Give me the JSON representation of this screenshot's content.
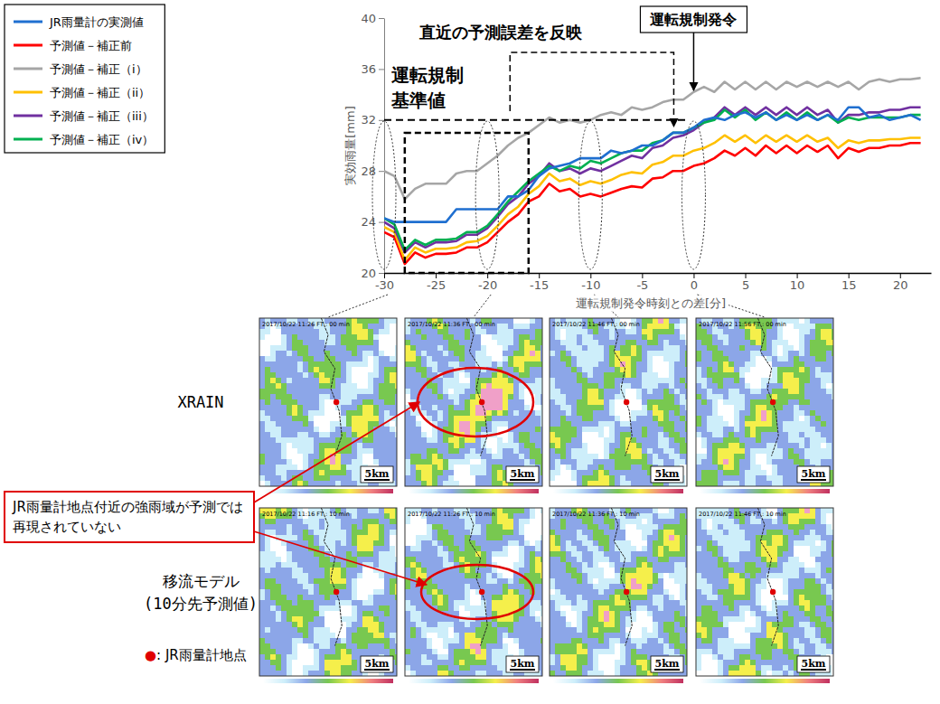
{
  "chart_data": {
    "type": "line",
    "xlabel": "運転規制発令時刻との差[分]",
    "ylabel": "実効雨量[mm]",
    "x": [
      -30,
      -29,
      -28,
      -27,
      -26,
      -25,
      -24,
      -23,
      -22,
      -21,
      -20,
      -19,
      -18,
      -17,
      -16,
      -15,
      -14,
      -13,
      -12,
      -11,
      -10,
      -9,
      -8,
      -7,
      -6,
      -5,
      -4,
      -3,
      -2,
      -1,
      0,
      1,
      2,
      3,
      4,
      5,
      6,
      7,
      8,
      9,
      10,
      11,
      12,
      13,
      14,
      15,
      16,
      17,
      18,
      19,
      20,
      21,
      22
    ],
    "series": [
      {
        "name": "JR雨量計の実測値",
        "color": "#1f6fd0",
        "values": [
          24.3,
          24.0,
          24.0,
          24.0,
          24.0,
          24.0,
          24.0,
          25.0,
          25.0,
          25.0,
          25.0,
          25.0,
          26.0,
          26.0,
          26.5,
          27.6,
          28.2,
          28.4,
          28.6,
          29.0,
          29.0,
          29.0,
          29.6,
          29.4,
          29.6,
          30.0,
          30.0,
          30.4,
          31.0,
          31.0,
          31.4,
          32.0,
          32.2,
          32.0,
          32.4,
          32.6,
          32.2,
          32.6,
          32.0,
          32.4,
          32.0,
          32.4,
          32.0,
          32.4,
          32.0,
          33.0,
          33.0,
          32.2,
          32.4,
          32.0,
          32.2,
          32.4,
          32.0
        ]
      },
      {
        "name": "予測値－補正前",
        "color": "#ff0000",
        "values": [
          23.2,
          22.8,
          20.7,
          21.6,
          21.2,
          21.5,
          21.5,
          21.6,
          22.0,
          22.0,
          22.4,
          23.2,
          24.0,
          24.6,
          25.6,
          26.0,
          27.0,
          26.4,
          26.6,
          26.0,
          26.2,
          26.0,
          26.3,
          26.6,
          26.8,
          26.7,
          27.4,
          27.5,
          28.0,
          28.0,
          28.4,
          28.6,
          29.0,
          29.6,
          29.2,
          29.8,
          29.2,
          30.0,
          29.4,
          30.0,
          29.4,
          30.0,
          29.5,
          30.0,
          29.0,
          29.8,
          29.5,
          29.8,
          29.8,
          30.0,
          30.0,
          30.2,
          30.2
        ]
      },
      {
        "name": "予測値－補正（i）",
        "color": "#a6a6a6",
        "values": [
          28.0,
          27.6,
          25.8,
          26.6,
          27.0,
          27.0,
          27.0,
          27.8,
          28.0,
          28.0,
          28.6,
          29.2,
          30.0,
          30.6,
          31.0,
          31.6,
          32.2,
          31.8,
          32.0,
          31.8,
          32.0,
          32.4,
          32.6,
          32.4,
          33.0,
          32.8,
          33.0,
          33.4,
          33.6,
          33.6,
          34.2,
          34.6,
          34.2,
          35.0,
          34.4,
          35.0,
          34.4,
          35.0,
          34.4,
          35.0,
          34.6,
          35.0,
          34.6,
          35.0,
          34.6,
          35.0,
          34.4,
          35.0,
          35.2,
          35.0,
          35.2,
          35.2,
          35.3
        ]
      },
      {
        "name": "予測値－補正（ii）",
        "color": "#ffc000",
        "values": [
          23.6,
          23.2,
          21.0,
          22.0,
          21.6,
          21.9,
          21.9,
          22.0,
          22.4,
          22.5,
          22.9,
          23.7,
          24.6,
          25.2,
          26.2,
          26.8,
          27.8,
          27.2,
          27.4,
          26.9,
          27.2,
          27.0,
          27.3,
          27.7,
          27.9,
          27.8,
          28.5,
          28.7,
          29.2,
          29.2,
          29.6,
          29.8,
          30.2,
          30.8,
          30.3,
          30.8,
          30.2,
          30.8,
          30.3,
          30.8,
          30.3,
          30.8,
          30.3,
          30.6,
          29.8,
          30.4,
          30.2,
          30.4,
          30.4,
          30.5,
          30.5,
          30.6,
          30.6
        ]
      },
      {
        "name": "予測値－補正（iii）",
        "color": "#7030a0",
        "values": [
          24.0,
          23.5,
          21.6,
          22.4,
          22.0,
          22.4,
          22.4,
          22.5,
          23.0,
          23.0,
          23.5,
          24.4,
          25.4,
          26.0,
          27.0,
          27.6,
          28.6,
          28.0,
          28.2,
          27.8,
          28.2,
          28.0,
          28.4,
          28.8,
          29.2,
          29.0,
          29.8,
          30.0,
          30.6,
          30.8,
          31.2,
          31.8,
          32.2,
          33.0,
          32.4,
          33.0,
          32.4,
          33.0,
          32.4,
          33.0,
          32.4,
          33.0,
          32.4,
          32.8,
          31.8,
          32.4,
          32.4,
          32.6,
          32.6,
          32.8,
          32.8,
          33.0,
          33.0
        ]
      },
      {
        "name": "予測値－補正（iv）",
        "color": "#00b050",
        "values": [
          24.3,
          23.8,
          21.8,
          22.6,
          22.2,
          22.6,
          22.6,
          22.7,
          23.2,
          23.2,
          23.7,
          24.6,
          25.6,
          26.4,
          27.2,
          27.8,
          28.4,
          28.0,
          28.4,
          28.2,
          28.8,
          28.6,
          29.0,
          29.4,
          29.6,
          29.6,
          30.2,
          30.4,
          31.0,
          31.0,
          31.4,
          31.8,
          32.0,
          32.8,
          32.2,
          32.8,
          32.0,
          32.6,
          32.0,
          32.6,
          32.0,
          32.6,
          32.0,
          32.4,
          31.8,
          32.2,
          32.0,
          32.2,
          32.2,
          32.2,
          32.2,
          32.4,
          32.4
        ]
      }
    ],
    "xlim": [
      -30,
      23
    ],
    "xticks": [
      -30,
      -25,
      -20,
      -15,
      -10,
      -5,
      0,
      5,
      10,
      15,
      20
    ],
    "ylim": [
      20,
      40
    ],
    "yticks": [
      20,
      24,
      28,
      32,
      36,
      40
    ],
    "grid": false,
    "legend": "upper left",
    "annotations": [
      {
        "text": "運転規制基準値",
        "y": 32
      },
      {
        "text": "直近の予測誤差を反映",
        "x": [
          -28,
          -16
        ],
        "y": [
          20,
          31
        ]
      },
      {
        "text": "運転規制発令",
        "x": 0
      }
    ]
  },
  "figure": {
    "columns_x": [
      -30,
      -20,
      -10,
      0
    ],
    "row_labels": [
      [
        "XRAIN"
      ],
      [
        "移流モデル",
        "(10分先予測値)"
      ]
    ],
    "panels": [
      [
        "2017/10/22 11:26  FT : 00 min",
        "2017/10/22 11:36  FT : 00 min",
        "2017/10/22 11:46  FT : 00 min",
        "2017/10/22 11:56  FT : 00 min"
      ],
      [
        "2017/10/22 11:16  FT : 10 min",
        "2017/10/22 11:26  FT : 10 min",
        "2017/10/22 11:36  FT : 10 min",
        "2017/10/22 11:46  FT : 10 min"
      ]
    ],
    "scale_label": "5km",
    "point_legend": "●: JR雨量計地点",
    "callout": "JR雨量計地点付近の強雨域が予測では再現されていない"
  }
}
